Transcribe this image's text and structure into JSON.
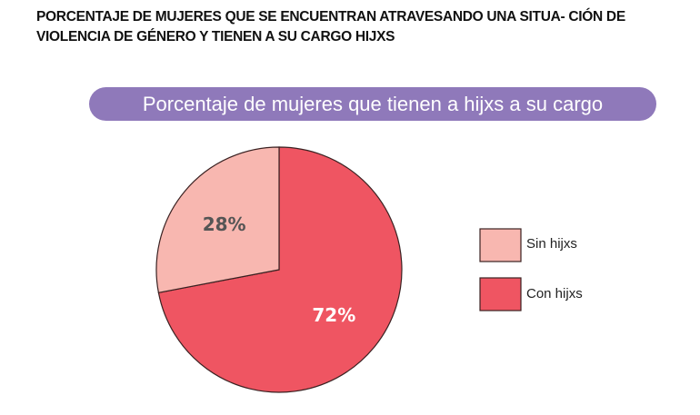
{
  "title": "PORCENTAJE DE MUJERES QUE SE ENCUENTRAN ATRAVESANDO UNA SITUA- CIÓN DE VIOLENCIA DE GÉNERO Y TIENEN A SU CARGO HIJXS",
  "chart_data": {
    "type": "pie",
    "title": "Porcentaje de mujeres que tienen a hijxs a su cargo",
    "categories": [
      "Con hijxs",
      "Sin hijxs"
    ],
    "values": [
      72,
      28
    ],
    "labels": [
      "72%",
      "28%"
    ],
    "colors": [
      "#ef5562",
      "#f8b7b0"
    ],
    "label_colors": [
      "#ffffff",
      "#555555"
    ],
    "legend": {
      "placement": "right",
      "entries": [
        "Sin hijxs",
        "Con hijxs"
      ]
    }
  }
}
